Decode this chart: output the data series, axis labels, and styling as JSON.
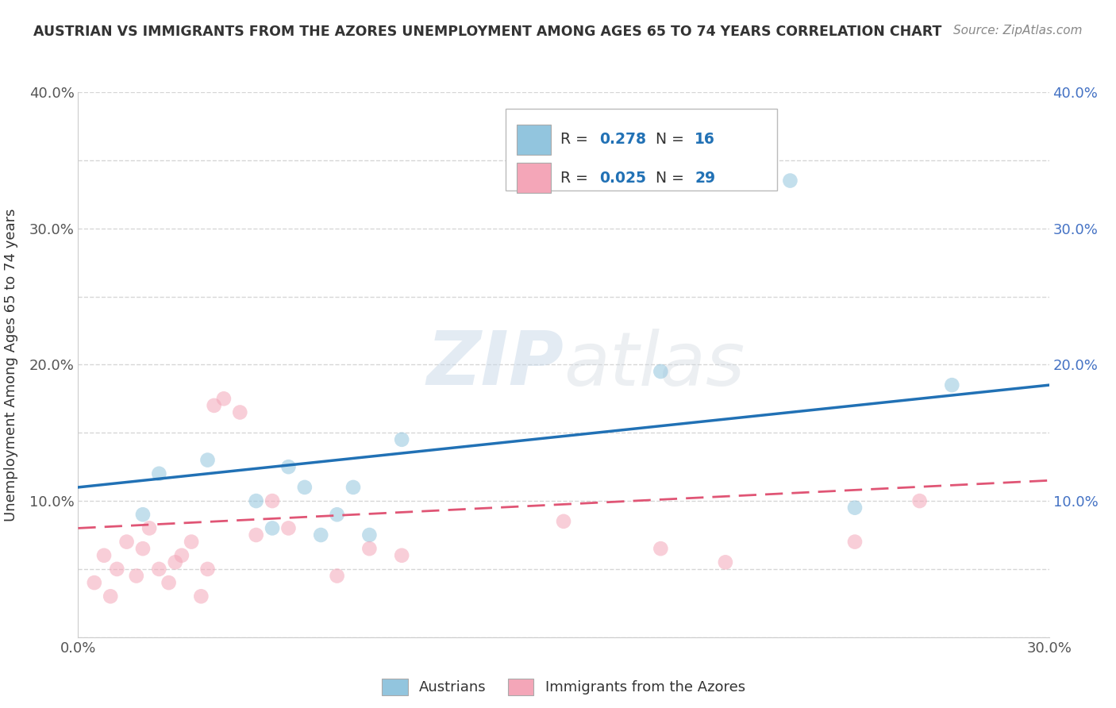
{
  "title": "AUSTRIAN VS IMMIGRANTS FROM THE AZORES UNEMPLOYMENT AMONG AGES 65 TO 74 YEARS CORRELATION CHART",
  "source": "Source: ZipAtlas.com",
  "ylabel": "Unemployment Among Ages 65 to 74 years",
  "xlim": [
    0.0,
    0.3
  ],
  "ylim": [
    0.0,
    0.4
  ],
  "xticks": [
    0.0,
    0.05,
    0.1,
    0.15,
    0.2,
    0.25,
    0.3
  ],
  "yticks": [
    0.0,
    0.05,
    0.1,
    0.15,
    0.2,
    0.25,
    0.3,
    0.35,
    0.4
  ],
  "blue_scatter_x": [
    0.02,
    0.025,
    0.04,
    0.055,
    0.06,
    0.065,
    0.07,
    0.075,
    0.08,
    0.085,
    0.09,
    0.1,
    0.18,
    0.22,
    0.24,
    0.27
  ],
  "blue_scatter_y": [
    0.09,
    0.12,
    0.13,
    0.1,
    0.08,
    0.125,
    0.11,
    0.075,
    0.09,
    0.11,
    0.075,
    0.145,
    0.195,
    0.335,
    0.095,
    0.185
  ],
  "pink_scatter_x": [
    0.005,
    0.008,
    0.01,
    0.012,
    0.015,
    0.018,
    0.02,
    0.022,
    0.025,
    0.028,
    0.03,
    0.032,
    0.035,
    0.038,
    0.04,
    0.042,
    0.045,
    0.05,
    0.055,
    0.06,
    0.065,
    0.08,
    0.09,
    0.1,
    0.15,
    0.18,
    0.2,
    0.24,
    0.26
  ],
  "pink_scatter_y": [
    0.04,
    0.06,
    0.03,
    0.05,
    0.07,
    0.045,
    0.065,
    0.08,
    0.05,
    0.04,
    0.055,
    0.06,
    0.07,
    0.03,
    0.05,
    0.17,
    0.175,
    0.165,
    0.075,
    0.1,
    0.08,
    0.045,
    0.065,
    0.06,
    0.085,
    0.065,
    0.055,
    0.07,
    0.1
  ],
  "blue_line_x": [
    0.0,
    0.3
  ],
  "blue_line_y": [
    0.11,
    0.185
  ],
  "pink_line_x": [
    0.0,
    0.3
  ],
  "pink_line_y": [
    0.08,
    0.115
  ],
  "blue_color": "#92c5de",
  "pink_color": "#f4a6b8",
  "blue_line_color": "#2171b5",
  "pink_line_color": "#e05575",
  "R_blue": "0.278",
  "N_blue": "16",
  "R_pink": "0.025",
  "N_pink": "29",
  "legend_label_blue": "Austrians",
  "legend_label_pink": "Immigrants from the Azores",
  "watermark_zip": "ZIP",
  "watermark_atlas": "atlas",
  "background_color": "#ffffff",
  "grid_color": "#cccccc",
  "tick_color": "#4472c4",
  "label_color": "#555555"
}
